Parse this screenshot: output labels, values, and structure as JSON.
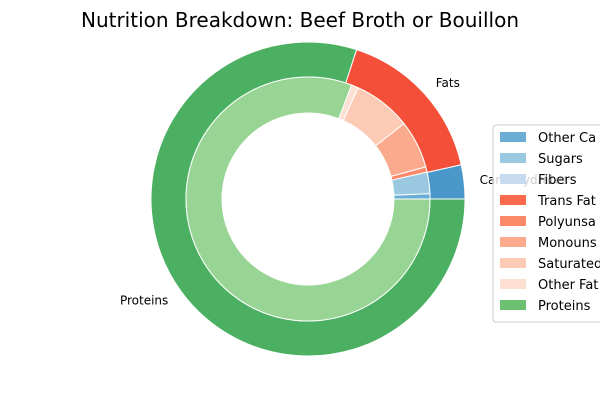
{
  "chart_data": {
    "type": "pie",
    "title": "Nutrition Breakdown:  Beef Broth or Bouillon",
    "outer": {
      "categories": [
        "Carbohydrates",
        "Fats",
        "Proteins"
      ],
      "values": [
        3.5,
        16.5,
        80
      ],
      "colors": [
        "#4a98c9",
        "#f44f39",
        "#4bb062"
      ]
    },
    "inner": {
      "series": [
        {
          "name": "Other Carbohydrates",
          "value": 0.7,
          "color": "#6aaed6"
        },
        {
          "name": "Sugars",
          "value": 2.8,
          "color": "#9ac8e0"
        },
        {
          "name": "Fibers",
          "value": 0.0,
          "color": "#c6dbef"
        },
        {
          "name": "Trans Fats",
          "value": 0.0,
          "color": "#fb6a4a"
        },
        {
          "name": "Polyunsaturated Fats",
          "value": 0.7,
          "color": "#fc8a6a"
        },
        {
          "name": "Monounsaturated Fats",
          "value": 6.3,
          "color": "#fcaa8e"
        },
        {
          "name": "Saturated Fats",
          "value": 7.6,
          "color": "#fdcab5"
        },
        {
          "name": "Other Fats",
          "value": 0.9,
          "color": "#fee0d3"
        },
        {
          "name": "Proteins",
          "value": 80,
          "color": "#98d594"
        }
      ]
    },
    "legend": {
      "placement": "right",
      "items": [
        "Other Ca",
        "Sugars",
        "Fibers",
        "Trans Fat",
        "Polyunsa",
        "Monouns",
        "Saturated",
        "Other Fat",
        "Proteins"
      ],
      "colors": [
        "#6aaed6",
        "#9ac8e0",
        "#c6dbef",
        "#fb6a4a",
        "#fc8a6a",
        "#fcaa8e",
        "#fdcab5",
        "#fee0d3",
        "#6bc072"
      ]
    }
  }
}
